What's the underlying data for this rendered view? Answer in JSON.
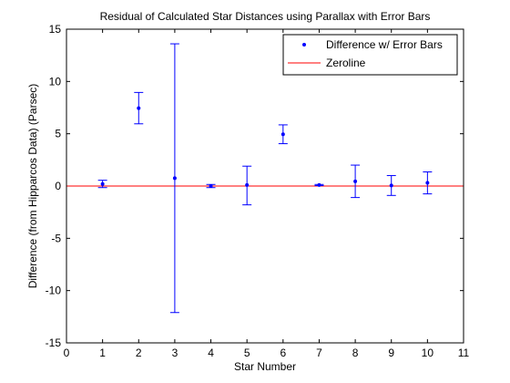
{
  "chart_data": {
    "type": "scatter",
    "title": "Residual of Calculated Star Distances using Parallax with Error Bars",
    "xlabel": "Star Number",
    "ylabel": "Difference (from Hipparcos Data) (Parsec)",
    "xlim": [
      0,
      11
    ],
    "ylim": [
      -15,
      15
    ],
    "xticks": [
      "0",
      "1",
      "2",
      "3",
      "4",
      "5",
      "6",
      "7",
      "8",
      "9",
      "10",
      "11"
    ],
    "yticks": [
      "-15",
      "-10",
      "-5",
      "0",
      "5",
      "10",
      "15"
    ],
    "grid": false,
    "legend_position": "top-right",
    "series": [
      {
        "name": "Difference w/ Error Bars",
        "color": "#0000FF",
        "marker": "dot",
        "x": [
          1,
          2,
          3,
          4,
          5,
          6,
          7,
          8,
          9,
          10
        ],
        "y": [
          0.2,
          7.45,
          0.75,
          0.0,
          0.1,
          4.95,
          0.1,
          0.45,
          0.05,
          0.3
        ],
        "err_low": [
          0.35,
          1.5,
          12.85,
          0.15,
          1.9,
          0.9,
          0.05,
          1.55,
          0.95,
          1.05
        ],
        "err_high": [
          0.35,
          1.5,
          12.85,
          0.15,
          1.8,
          0.9,
          0.05,
          1.55,
          0.95,
          1.05
        ]
      },
      {
        "name": "Zeroline",
        "color": "#FF0000",
        "type": "line",
        "x": [
          0,
          11
        ],
        "y": [
          0,
          0
        ]
      }
    ]
  }
}
